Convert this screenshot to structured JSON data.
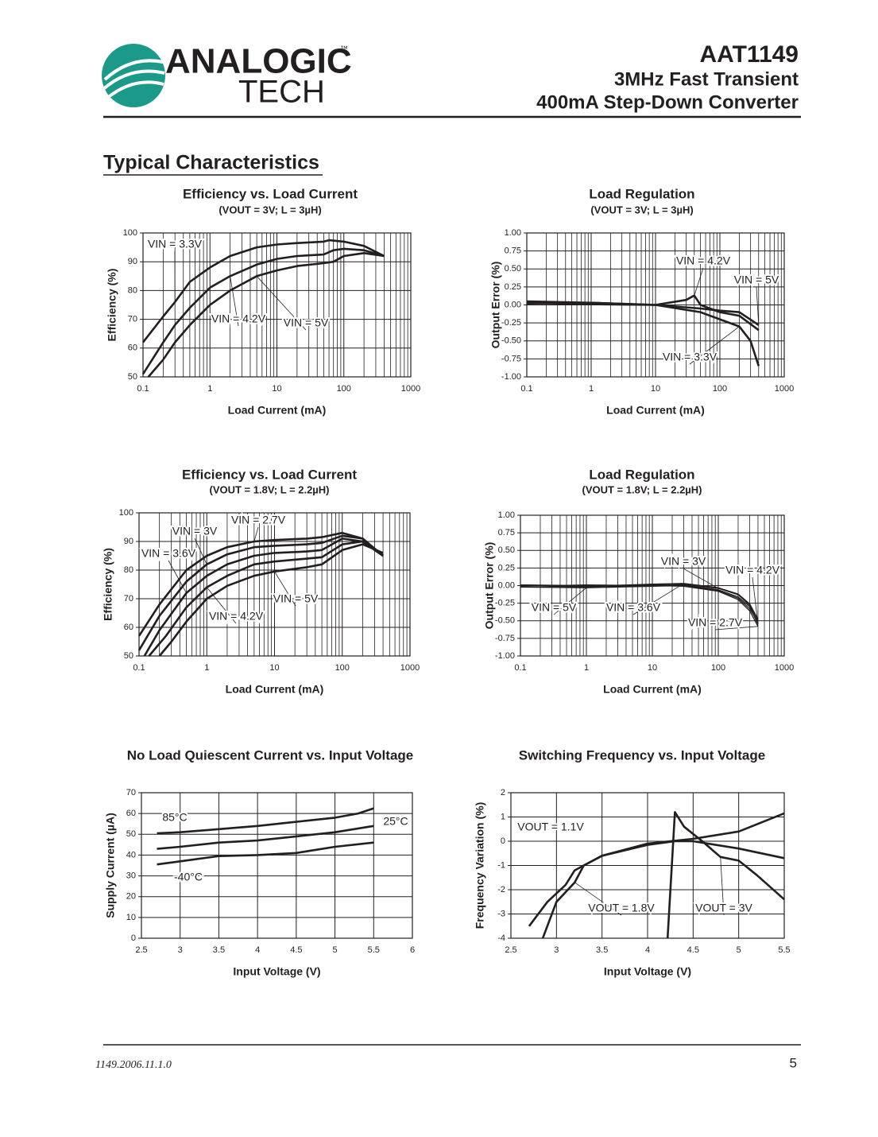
{
  "header": {
    "logo_top": "ANALOGIC",
    "logo_bottom": "TECH",
    "trademark": "™",
    "part": "AAT1149",
    "line1": "3MHz Fast Transient",
    "line2": "400mA Step-Down Converter"
  },
  "section_title": "Typical Characteristics",
  "chart_data": [
    {
      "type": "line",
      "title": "Efficiency vs. Load Current",
      "subtitle": "(VOUT = 3V; L = 3µH)",
      "xlabel": "Load Current (mA)",
      "ylabel": "Efficiency (%)",
      "log_x": true,
      "grid": true,
      "xlim": [
        0.1,
        1000
      ],
      "xticks": [
        0.1,
        1,
        10,
        100,
        1000
      ],
      "ylim": [
        50,
        100
      ],
      "yticks": [
        50,
        60,
        70,
        80,
        90,
        100
      ],
      "series": [
        {
          "name": "VIN = 3.3V",
          "color": "#231f20",
          "x": [
            0.1,
            0.2,
            0.3,
            0.5,
            1,
            2,
            5,
            10,
            20,
            50,
            60,
            100,
            200,
            400
          ],
          "values": [
            62,
            71,
            76,
            83,
            88,
            92,
            95,
            96,
            96.5,
            97,
            97.5,
            97,
            95.5,
            92
          ]
        },
        {
          "name": "VIN = 4.2V",
          "color": "#231f20",
          "x": [
            0.1,
            0.2,
            0.3,
            0.5,
            1,
            2,
            5,
            10,
            20,
            50,
            70,
            100,
            200,
            400
          ],
          "values": [
            51,
            62,
            68,
            74,
            81,
            85,
            89,
            91,
            92,
            92.5,
            94,
            94.5,
            94,
            92
          ]
        },
        {
          "name": "VIN = 5V",
          "color": "#231f20",
          "x": [
            0.12,
            0.2,
            0.3,
            0.5,
            1,
            2,
            5,
            10,
            20,
            50,
            70,
            100,
            200,
            400
          ],
          "values": [
            50,
            56,
            62,
            68,
            75,
            80,
            85,
            87,
            88.5,
            89.5,
            90,
            92,
            93,
            92
          ]
        }
      ]
    },
    {
      "type": "line",
      "title": "Load Regulation",
      "subtitle": "(VOUT = 3V; L = 3µH)",
      "xlabel": "Load Current (mA)",
      "ylabel": "Output Error (%)",
      "log_x": true,
      "grid": true,
      "xlim": [
        0.1,
        1000
      ],
      "xticks": [
        0.1,
        1,
        10,
        100,
        1000
      ],
      "ylim": [
        -1,
        1
      ],
      "yticks": [
        {
          "value": -1,
          "label": "-1.00"
        },
        -0.75,
        {
          "value": -0.5,
          "label": "-0.50"
        },
        -0.25,
        {
          "value": 0,
          "label": "0.00"
        },
        0.25,
        {
          "value": 0.5,
          "label": "0.50"
        },
        0.75,
        {
          "value": 1,
          "label": "1.00"
        }
      ],
      "series": [
        {
          "name": "VIN = 4.2V",
          "color": "#231f20",
          "x": [
            0.1,
            1,
            10,
            30,
            40,
            50,
            100,
            200,
            400
          ],
          "values": [
            0.02,
            0.03,
            0,
            0.07,
            0.13,
            0,
            -0.1,
            -0.15,
            -0.35
          ]
        },
        {
          "name": "VIN = 5V",
          "color": "#231f20",
          "x": [
            0.1,
            1,
            10,
            50,
            100,
            200,
            400
          ],
          "values": [
            0.05,
            0.03,
            0,
            -0.05,
            -0.08,
            -0.1,
            -0.28
          ]
        },
        {
          "name": "VIN = 3.3V",
          "color": "#231f20",
          "x": [
            0.1,
            1,
            10,
            50,
            100,
            200,
            300,
            400
          ],
          "values": [
            0.03,
            0.01,
            0,
            -0.1,
            -0.2,
            -0.3,
            -0.5,
            -0.85
          ]
        }
      ]
    },
    {
      "type": "line",
      "title": "Efficiency vs. Load Current",
      "subtitle": "(VOUT = 1.8V; L = 2.2µH)",
      "xlabel": "Load Current (mA)",
      "ylabel": "Efficiency (%)",
      "log_x": true,
      "grid": true,
      "xlim": [
        0.1,
        1000
      ],
      "xticks": [
        0.1,
        1,
        10,
        100,
        1000
      ],
      "ylim": [
        50,
        100
      ],
      "yticks": [
        50,
        60,
        70,
        80,
        90,
        100
      ],
      "series": [
        {
          "name": "VIN = 2.7V",
          "color": "#231f20",
          "x": [
            0.1,
            0.2,
            0.5,
            1,
            2,
            5,
            10,
            30,
            50,
            100,
            200,
            400
          ],
          "values": [
            57,
            68,
            80,
            85,
            88,
            90,
            90.5,
            91,
            91.5,
            93,
            91,
            85
          ]
        },
        {
          "name": "VIN = 3V",
          "color": "#231f20",
          "x": [
            0.1,
            0.2,
            0.5,
            1,
            2,
            5,
            10,
            30,
            50,
            100,
            200,
            400
          ],
          "values": [
            52,
            64,
            76,
            82,
            85.5,
            88,
            88.5,
            89,
            89.5,
            92,
            91,
            85
          ]
        },
        {
          "name": "VIN = 3.6V",
          "color": "#231f20",
          "x": [
            0.12,
            0.2,
            0.5,
            1,
            2,
            5,
            10,
            30,
            50,
            100,
            200,
            400
          ],
          "values": [
            50,
            59,
            72,
            78,
            82,
            85,
            86,
            86.5,
            87,
            91,
            90,
            85
          ]
        },
        {
          "name": "VIN = 4.2V",
          "color": "#231f20",
          "x": [
            0.14,
            0.25,
            0.5,
            1,
            2,
            5,
            10,
            30,
            50,
            100,
            200,
            400
          ],
          "values": [
            50,
            57,
            67,
            74,
            78,
            82,
            83,
            84,
            84.5,
            89,
            90,
            85
          ]
        },
        {
          "name": "VIN = 5V",
          "color": "#231f20",
          "x": [
            0.2,
            0.3,
            0.5,
            1,
            2,
            5,
            10,
            30,
            50,
            100,
            200,
            400
          ],
          "values": [
            50,
            55,
            62,
            70,
            74.5,
            78,
            79.5,
            81,
            82,
            87,
            89,
            86
          ]
        }
      ]
    },
    {
      "type": "line",
      "title": "Load Regulation",
      "subtitle": "(VOUT = 1.8V; L = 2.2µH)",
      "xlabel": "Load Current (mA)",
      "ylabel": "Output Error (%)",
      "log_x": true,
      "grid": true,
      "xlim": [
        0.1,
        1000
      ],
      "xticks": [
        0.1,
        1,
        10,
        100,
        1000
      ],
      "ylim": [
        -1,
        1
      ],
      "yticks": [
        {
          "value": -1,
          "label": "-1.00"
        },
        -0.75,
        {
          "value": -0.5,
          "label": "-0.50"
        },
        -0.25,
        {
          "value": 0,
          "label": "0.00"
        },
        0.25,
        {
          "value": 0.5,
          "label": "0.50"
        },
        0.75,
        {
          "value": 1,
          "label": "1.00"
        }
      ],
      "series": [
        {
          "name": "VIN = 3V",
          "color": "#231f20",
          "x": [
            0.1,
            1,
            10,
            30,
            100,
            200,
            300,
            400
          ],
          "values": [
            0,
            -0.02,
            0,
            0.02,
            -0.04,
            -0.13,
            -0.28,
            -0.5
          ]
        },
        {
          "name": "VIN = 4.2V",
          "color": "#231f20",
          "x": [
            0.1,
            1,
            10,
            30,
            100,
            200,
            300,
            400
          ],
          "values": [
            0.01,
            0,
            0.01,
            0.01,
            -0.06,
            -0.16,
            -0.3,
            -0.55
          ]
        },
        {
          "name": "VIN = 5V",
          "color": "#231f20",
          "x": [
            0.1,
            1,
            10,
            30,
            100,
            200,
            300,
            400
          ],
          "values": [
            -0.02,
            -0.03,
            -0.01,
            0,
            -0.07,
            -0.18,
            -0.33,
            -0.52
          ]
        },
        {
          "name": "VIN = 3.6V",
          "color": "#231f20",
          "x": [
            0.1,
            1,
            10,
            30,
            100,
            200,
            300,
            400
          ],
          "values": [
            0.01,
            -0.01,
            0.02,
            0.03,
            -0.03,
            -0.12,
            -0.26,
            -0.48
          ]
        },
        {
          "name": "VIN = 2.7V",
          "color": "#231f20",
          "x": [
            0.1,
            1,
            10,
            30,
            100,
            200,
            300,
            400
          ],
          "values": [
            -0.01,
            0.01,
            0,
            -0.01,
            -0.08,
            -0.2,
            -0.36,
            -0.58
          ]
        }
      ]
    },
    {
      "type": "line",
      "title": "No Load Quiescent Current vs. Input Voltage",
      "xlabel": "Input Voltage (V)",
      "ylabel": "Supply Current (µA)",
      "grid": true,
      "xlim": [
        2.5,
        6
      ],
      "xticks": [
        2.5,
        3,
        3.5,
        4,
        4.5,
        5,
        5.5,
        6
      ],
      "ylim": [
        0,
        70
      ],
      "yticks": [
        0,
        10,
        20,
        30,
        40,
        50,
        60,
        70
      ],
      "series": [
        {
          "name": "85°C",
          "color": "#231f20",
          "x": [
            2.7,
            3,
            3.5,
            4,
            4.5,
            5,
            5.3,
            5.5
          ],
          "values": [
            50.5,
            51,
            52.5,
            54,
            56,
            58,
            60,
            62.5
          ]
        },
        {
          "name": "25°C",
          "color": "#231f20",
          "x": [
            2.7,
            3,
            3.5,
            4,
            4.5,
            5,
            5.5
          ],
          "values": [
            43,
            44,
            46,
            47,
            49,
            51,
            54
          ]
        },
        {
          "name": "-40°C",
          "color": "#231f20",
          "x": [
            2.7,
            3,
            3.5,
            4,
            4.5,
            5,
            5.5
          ],
          "values": [
            35.5,
            37,
            39.5,
            40,
            41,
            44,
            46
          ]
        }
      ]
    },
    {
      "type": "line",
      "title": "Switching Frequency vs. Input Voltage",
      "xlabel": "Input Voltage (V)",
      "ylabel": "Frequency Variation (%)",
      "grid": true,
      "xlim": [
        2.5,
        5.5
      ],
      "xticks": [
        2.5,
        3,
        3.5,
        4,
        4.5,
        5,
        5.5
      ],
      "ylim": [
        -4,
        2
      ],
      "yticks": [
        -4,
        -3,
        -2,
        -1,
        0,
        1,
        2
      ],
      "series": [
        {
          "name": "VOUT = 1.1V",
          "color": "#231f20",
          "x": [
            2.7,
            2.9,
            3.1,
            3.2,
            3.3,
            3.5,
            4,
            4.5,
            5,
            5.5
          ],
          "values": [
            -3.5,
            -2.5,
            -1.8,
            -1.2,
            -1,
            -0.6,
            -0.1,
            0.1,
            0.4,
            1.15
          ]
        },
        {
          "name": "VOUT = 1.8V",
          "color": "#231f20",
          "x": [
            2.85,
            3,
            3.2,
            3.3,
            3.5,
            4,
            4.3,
            4.5,
            5,
            5.5
          ],
          "values": [
            -4,
            -2.5,
            -1.7,
            -1,
            -0.6,
            -0.15,
            0,
            0,
            -0.3,
            -0.7
          ]
        },
        {
          "name": "VOUT = 3V",
          "color": "#231f20",
          "x": [
            4.22,
            4.3,
            4.4,
            4.6,
            4.8,
            5,
            5.2,
            5.5
          ],
          "values": [
            -4,
            1.2,
            0.6,
            0,
            -0.65,
            -0.8,
            -1.4,
            -2.4
          ]
        }
      ]
    }
  ],
  "footer": {
    "doc_id": "1149.2006.11.1.0",
    "page": "5"
  }
}
